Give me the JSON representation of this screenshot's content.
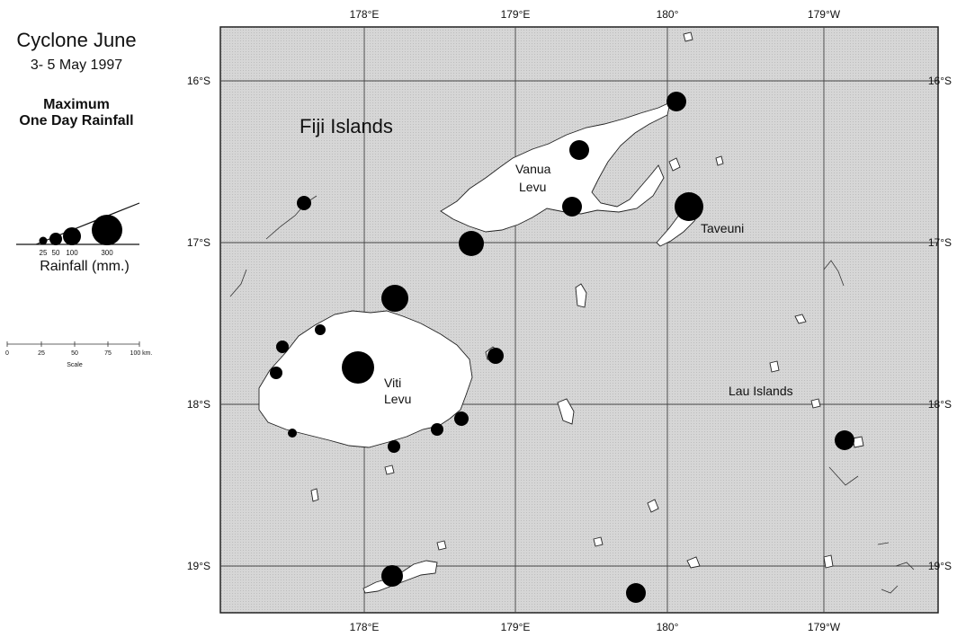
{
  "legend": {
    "title": "Cyclone June",
    "dates": "3- 5 May  1997",
    "heading_line1": "Maximum",
    "heading_line2": "One Day Rainfall",
    "size_classes": [
      "25",
      "50",
      "100",
      "300"
    ],
    "units": "Rainfall (mm.)",
    "scale_ticks": [
      "0",
      "25",
      "50",
      "75",
      "100 km."
    ],
    "scale_caption": "Scale"
  },
  "map": {
    "region_label": "Fiji Islands",
    "place_labels": {
      "vanua_levu_1": "Vanua",
      "vanua_levu_2": "Levu",
      "viti_levu_1": "Viti",
      "viti_levu_2": "Levu",
      "taveuni": "Taveuni",
      "lau": "Lau Islands"
    },
    "lon_labels": [
      "178°E",
      "179°E",
      "180°",
      "179°W"
    ],
    "lat_labels": [
      "16°S",
      "17°S",
      "18°S",
      "19°S"
    ],
    "colors": {
      "sea": "#d3d3d3",
      "land": "#ffffff",
      "grid": "#444444",
      "marker": "#000000"
    }
  }
}
